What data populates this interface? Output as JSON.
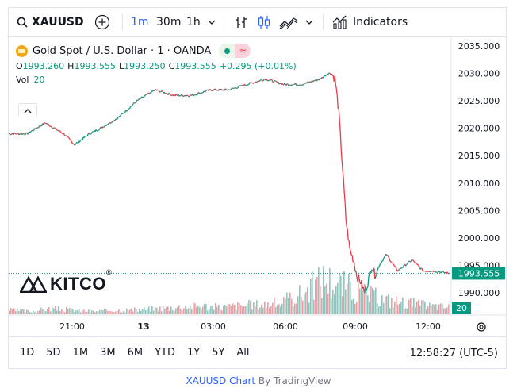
{
  "toolbar": {
    "symbol": "XAUUSD",
    "intervals": [
      "1m",
      "30m",
      "1h"
    ],
    "active_interval": "1m",
    "indicators_label": "Indicators"
  },
  "legend": {
    "title": "Gold Spot / U.S. Dollar · 1 · OANDA",
    "open_label": "O",
    "open": "1993.260",
    "high_label": "H",
    "high": "1993.555",
    "low_label": "L",
    "low": "1993.250",
    "close_label": "C",
    "close": "1993.555",
    "change": "+0.295 (+0.01%)",
    "vol_label": "Vol",
    "vol": "20"
  },
  "logo": {
    "text": "KITCO",
    "mark": "®"
  },
  "chart_data": {
    "type": "line",
    "ylim": [
      1987,
      2036
    ],
    "y_ticks": [
      "2035.000",
      "2030.000",
      "2025.000",
      "2020.000",
      "2015.000",
      "2010.000",
      "2005.000",
      "2000.000",
      "1995.000",
      "1990.000"
    ],
    "x_ticks": [
      "21:00",
      "13",
      "03:00",
      "06:00",
      "09:00",
      "12:00"
    ],
    "series": [
      {
        "x": [
          0,
          5,
          10,
          15,
          18,
          22,
          25,
          30,
          35,
          40,
          45,
          50,
          55,
          60,
          65,
          70,
          75,
          80,
          85,
          87,
          88,
          89,
          90,
          91,
          92,
          93,
          94,
          95,
          96,
          97,
          98,
          99,
          100,
          101,
          103,
          106,
          110,
          113,
          116,
          120
        ],
        "values": [
          2019,
          2019,
          2021,
          2019,
          2017,
          2019,
          2020,
          2022,
          2025,
          2027,
          2026,
          2026,
          2027,
          2027,
          2028,
          2029,
          2028,
          2028,
          2029,
          2030,
          2030,
          2029,
          2023,
          2013,
          2003,
          1998,
          1996,
          1993,
          1992,
          1990,
          1992,
          1995,
          1993,
          1995,
          1997,
          1994,
          1996,
          1994,
          1994,
          1993.555
        ]
      }
    ],
    "volume": [
      3,
      2,
      4,
      3,
      2,
      3,
      3,
      4,
      5,
      6,
      5,
      6,
      7,
      8,
      15,
      25,
      20,
      14,
      10,
      8,
      6,
      5
    ],
    "last_price": "1993.555",
    "last_volume": "20"
  },
  "ranges": [
    "1D",
    "5D",
    "1M",
    "3M",
    "6M",
    "YTD",
    "1Y",
    "5Y",
    "All"
  ],
  "clock": "12:58:27 (UTC-5)",
  "credit": {
    "link": "XAUUSD Chart",
    "rest": " By TradingView"
  },
  "colors": {
    "up": "#089981",
    "down": "#f23645",
    "accent": "#2962ff"
  }
}
